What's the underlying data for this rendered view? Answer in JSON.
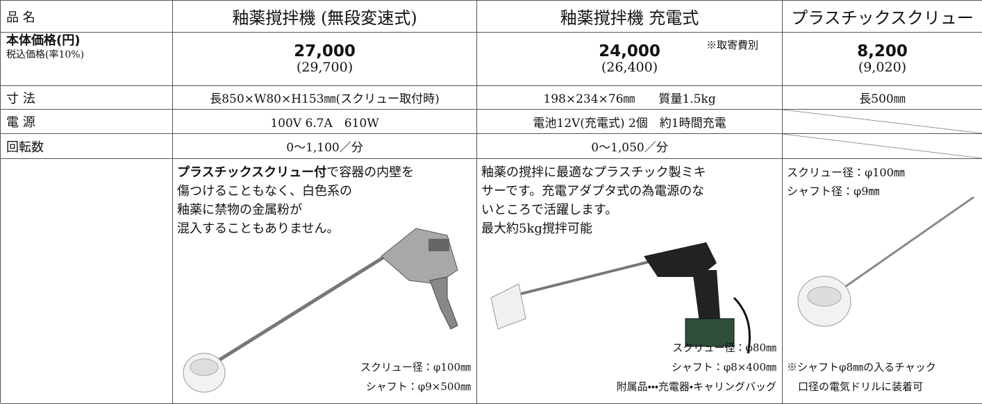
{
  "header": {
    "label": "品 名",
    "products": [
      "釉薬撹拌機 (無段変速式)",
      "釉薬撹拌機 充電式",
      "プラスチックスクリュー"
    ]
  },
  "price": {
    "label": "本体価格(円)",
    "sublabel": "税込価格(率10%)",
    "cells": [
      {
        "price": "27,000",
        "tax": "(29,700)"
      },
      {
        "price": "24,000",
        "note": "※取寄費別",
        "tax": "(26,400)"
      },
      {
        "price": "8,200",
        "tax": "(9,020)"
      }
    ]
  },
  "dimensions": {
    "label": "寸 法",
    "cells": [
      "長850×W80×H153㎜(スクリュー取付時)",
      "198×234×76㎜　　質量1.5kg",
      "長500㎜"
    ]
  },
  "power": {
    "label": "電 源",
    "cells": [
      "100V 6.7A　610W",
      "電池12V(充電式) 2個　約1時間充電"
    ]
  },
  "rpm": {
    "label": "回転数",
    "cells": [
      "0〜1,100／分",
      "0〜1,050／分"
    ]
  },
  "description": {
    "col1": {
      "bold": "プラスチックスクリュー付",
      "lines": [
        "で容器の内壁を",
        "傷つけることもなく、白色系の",
        "釉薬に禁物の金属粉が",
        "混入することもありません。"
      ],
      "specs": [
        "スクリュー径：φ100㎜",
        "シャフト：φ9×500㎜"
      ]
    },
    "col2": {
      "lines": [
        "釉薬の撹拌に最適なプラスチック製ミキ",
        "サーです。充電アダプタ式の為電源のな",
        "いところで活躍します。",
        "最大約5kg撹拌可能"
      ],
      "specs": [
        "スクリュー径：φ80㎜",
        "シャフト：φ8×400㎜",
        "附属品・・・充電器・キャリングバッグ"
      ]
    },
    "col3": {
      "specs": [
        "スクリュー径：φ100㎜",
        "シャフト径：φ9㎜"
      ],
      "note": [
        "※シャフトφ8㎜の入るチャック",
        "口径の電気ドリルに装着可"
      ]
    }
  }
}
